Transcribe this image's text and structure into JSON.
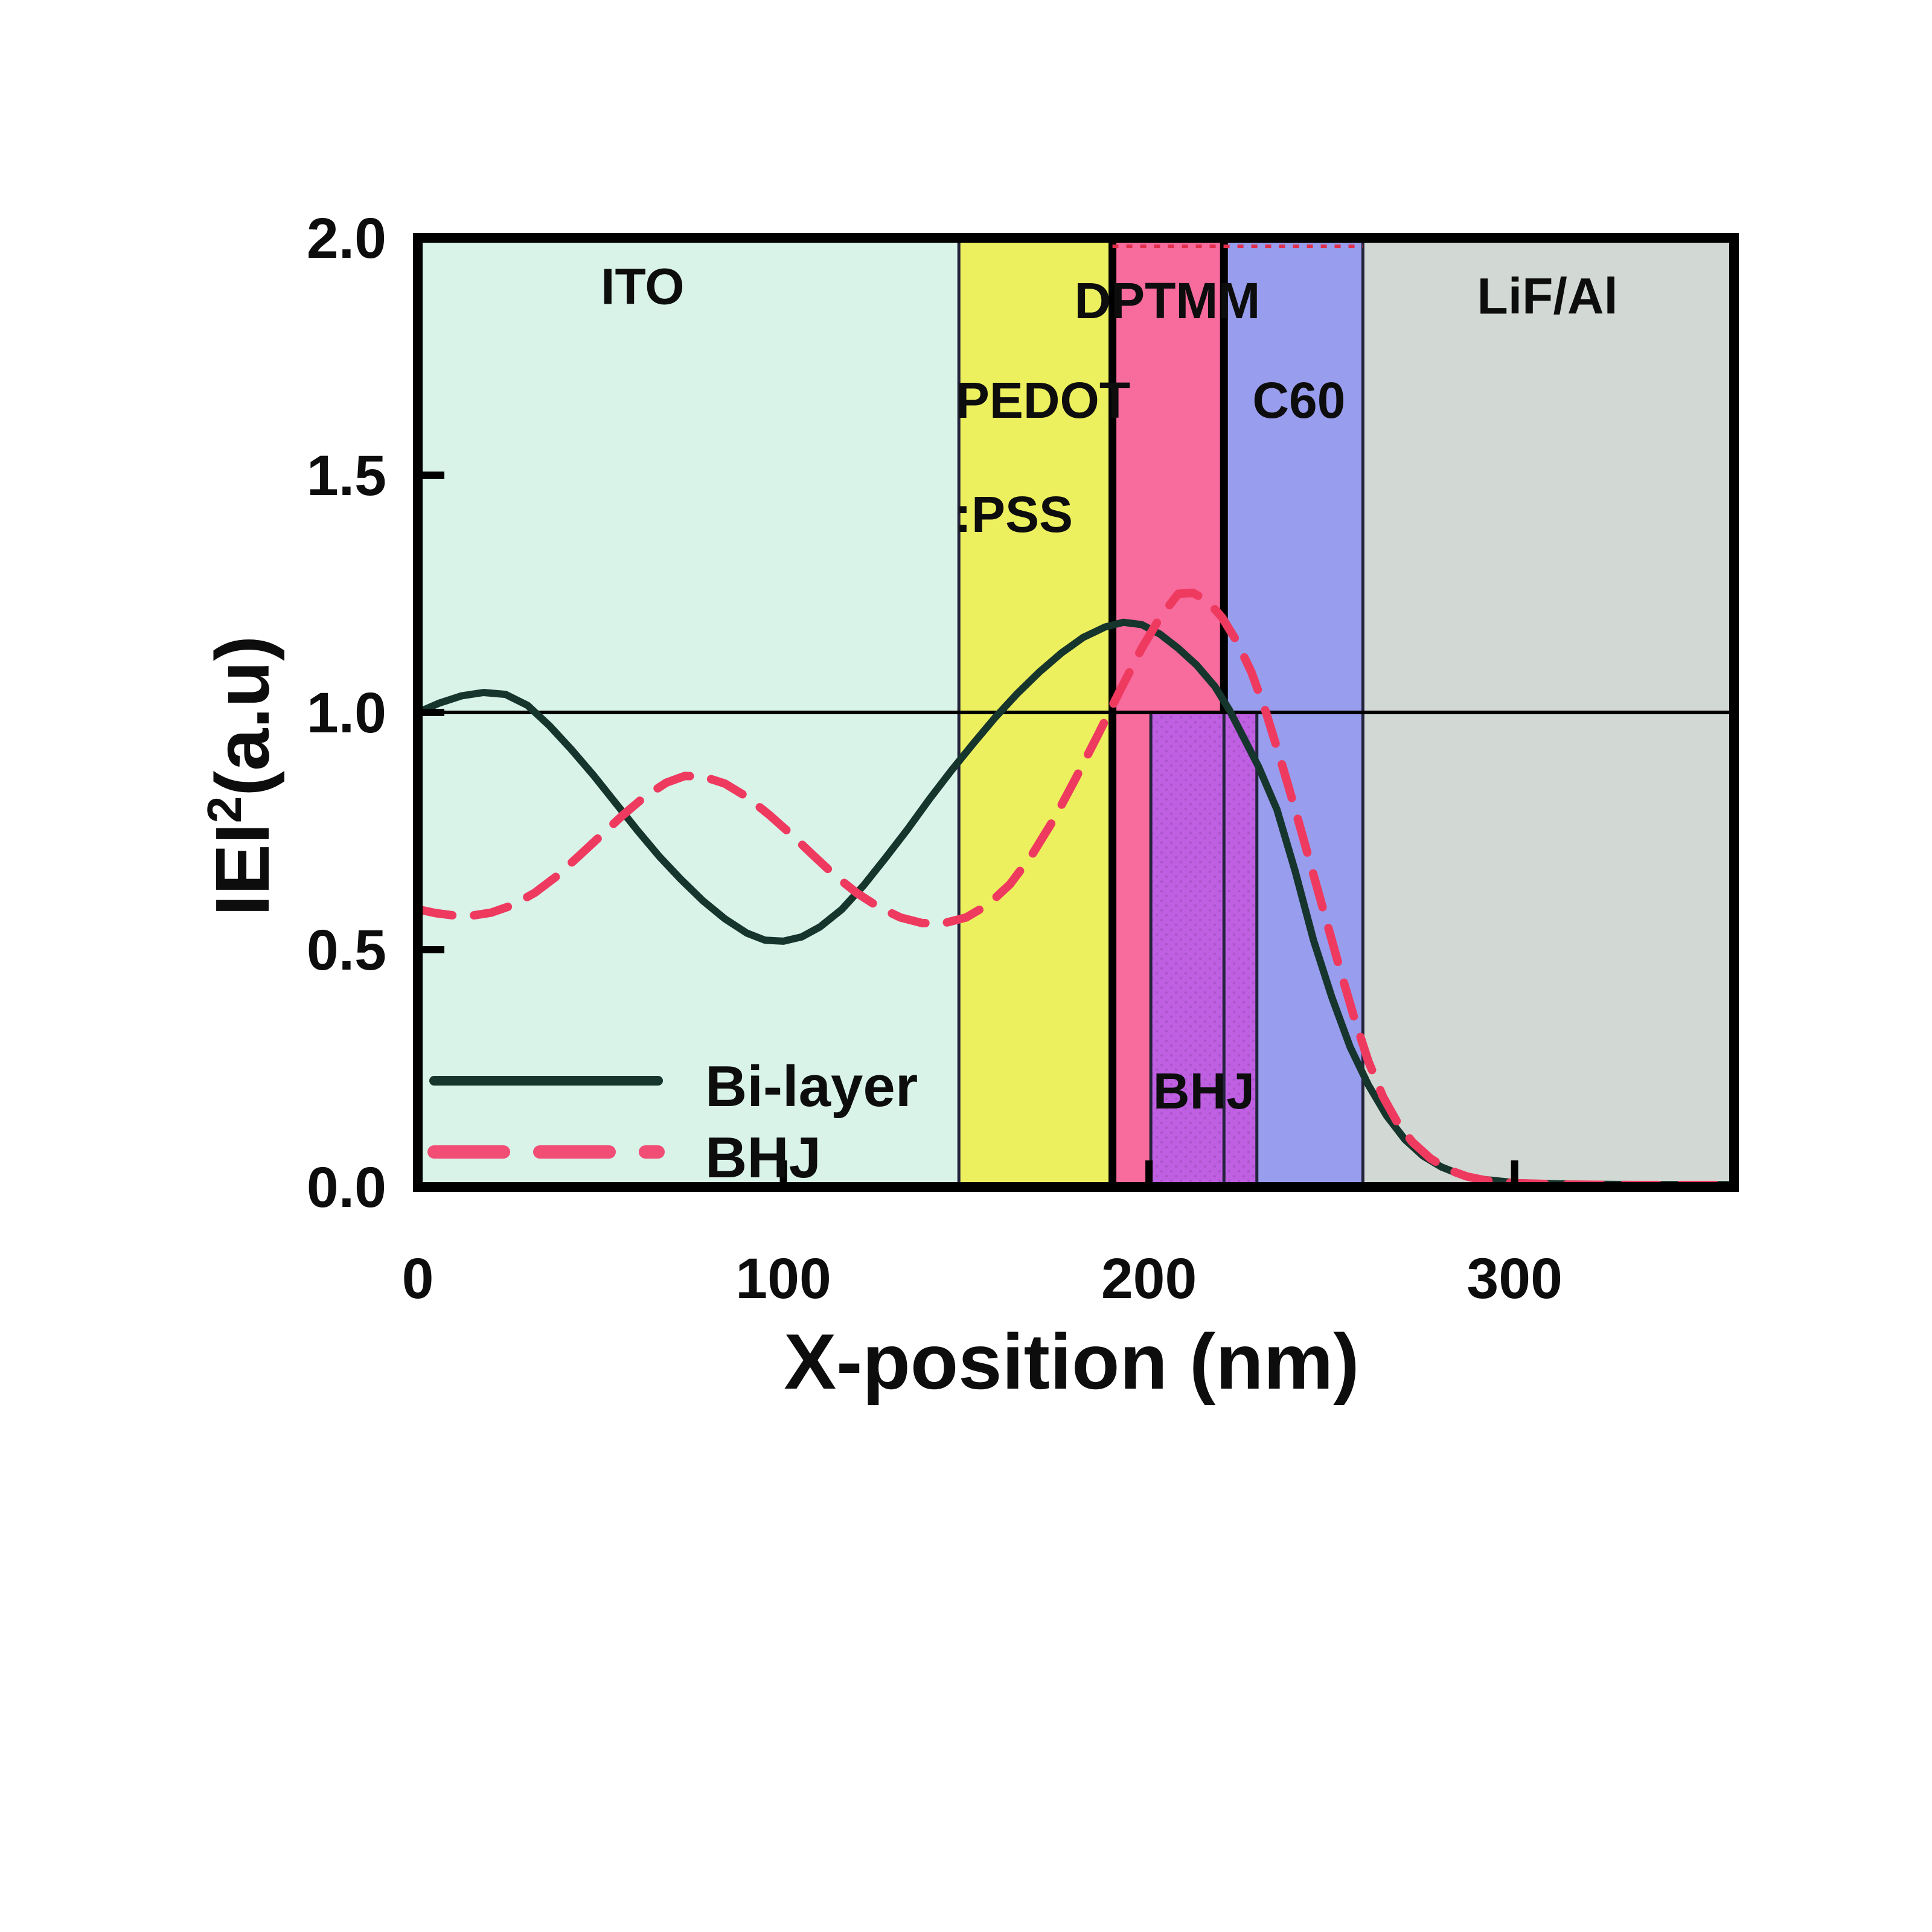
{
  "chart_data": {
    "type": "line",
    "title": "",
    "xlabel": "X-position (nm)",
    "ylabel": {
      "prefix": "IEI",
      "sup": "2",
      "suffix": "(a.u)"
    },
    "xlim": [
      0,
      360
    ],
    "ylim": [
      0,
      2.0
    ],
    "grid": false,
    "legend_position": "lower-left",
    "x_ticks": [
      {
        "value": 0,
        "label": "0"
      },
      {
        "value": 100,
        "label": "100"
      },
      {
        "value": 200,
        "label": "200"
      },
      {
        "value": 300,
        "label": "300"
      }
    ],
    "y_ticks": [
      {
        "value": 0.0,
        "label": "0.0"
      },
      {
        "value": 0.5,
        "label": "0.5"
      },
      {
        "value": 1.0,
        "label": "1.0"
      },
      {
        "value": 1.5,
        "label": "1.5"
      },
      {
        "value": 2.0,
        "label": "2.0"
      }
    ],
    "reference_line_y": 1.0,
    "regions": [
      {
        "name": "ITO",
        "x0": 0,
        "x1": 148,
        "color": "#d9f3e9",
        "label_lines": [
          {
            "text": "ITO",
            "x": 61.5,
            "y": 1.9
          }
        ]
      },
      {
        "name": "PEDOT:PSS",
        "x0": 148,
        "x1": 190,
        "color": "#edf05e",
        "label_lines": [
          {
            "text": "PEDOT",
            "x": 171,
            "y": 1.66
          },
          {
            "text": ":PSS",
            "x": 163,
            "y": 1.42
          }
        ]
      },
      {
        "name": "DPTMM",
        "x0": 190,
        "x1": 220.5,
        "color": "#f76b9d",
        "label_lines": [
          {
            "text": "DPTMM",
            "x": 205,
            "y": 1.87
          }
        ]
      },
      {
        "name": "C60",
        "x0": 220.5,
        "x1": 258.5,
        "color": "#989ded",
        "label_lines": [
          {
            "text": "C60",
            "x": 241,
            "y": 1.66
          }
        ]
      },
      {
        "name": "LiF/Al",
        "x0": 258.5,
        "x1": 360,
        "color": "#d2d8d3",
        "label_lines": [
          {
            "text": "LiF/Al",
            "x": 309,
            "y": 1.88
          }
        ]
      }
    ],
    "bhj_region": {
      "name": "BHJ",
      "x0": 200.5,
      "x1": 229.5,
      "y0": 0,
      "y1": 1.0,
      "color": "#bf5fe2",
      "label_lines": [
        {
          "text": "BHJ",
          "x": 215,
          "y": 0.205
        }
      ]
    },
    "boundaries": [
      {
        "x": 148,
        "span": "full",
        "strong": false
      },
      {
        "x": 190,
        "span": "full",
        "strong": true
      },
      {
        "x": 220.5,
        "span": "above",
        "strong": true
      },
      {
        "x": 220.5,
        "span": "below",
        "strong": false
      },
      {
        "x": 200.5,
        "span": "below",
        "strong": false
      },
      {
        "x": 229.5,
        "span": "below",
        "strong": false
      },
      {
        "x": 258.5,
        "span": "full",
        "strong": false
      }
    ],
    "top_dotted_edge": {
      "x0": 190,
      "x1": 258.5,
      "color": "#e0304c"
    },
    "series": [
      {
        "name": "Bi-layer",
        "style": "solid",
        "color": "#16352c",
        "points": [
          [
            0,
            1.0
          ],
          [
            6,
            1.02
          ],
          [
            12,
            1.035
          ],
          [
            18,
            1.042
          ],
          [
            24,
            1.038
          ],
          [
            30,
            1.015
          ],
          [
            36,
            0.972
          ],
          [
            42,
            0.922
          ],
          [
            48,
            0.868
          ],
          [
            54,
            0.81
          ],
          [
            60,
            0.752
          ],
          [
            66,
            0.697
          ],
          [
            72,
            0.648
          ],
          [
            78,
            0.603
          ],
          [
            84,
            0.565
          ],
          [
            90,
            0.535
          ],
          [
            95,
            0.52
          ],
          [
            100,
            0.518
          ],
          [
            105,
            0.527
          ],
          [
            110,
            0.548
          ],
          [
            116,
            0.585
          ],
          [
            122,
            0.636
          ],
          [
            128,
            0.694
          ],
          [
            134,
            0.754
          ],
          [
            140,
            0.818
          ],
          [
            146,
            0.878
          ],
          [
            152,
            0.935
          ],
          [
            158,
            0.99
          ],
          [
            164,
            1.04
          ],
          [
            170,
            1.085
          ],
          [
            176,
            1.125
          ],
          [
            182,
            1.158
          ],
          [
            188,
            1.18
          ],
          [
            193,
            1.19
          ],
          [
            198,
            1.185
          ],
          [
            203,
            1.165
          ],
          [
            208,
            1.135
          ],
          [
            213,
            1.1
          ],
          [
            218,
            1.055
          ],
          [
            222,
            1.005
          ],
          [
            226,
            0.945
          ],
          [
            230,
            0.885
          ],
          [
            235,
            0.795
          ],
          [
            240,
            0.665
          ],
          [
            245,
            0.52
          ],
          [
            250,
            0.4
          ],
          [
            255,
            0.295
          ],
          [
            260,
            0.215
          ],
          [
            265,
            0.15
          ],
          [
            270,
            0.1
          ],
          [
            275,
            0.065
          ],
          [
            280,
            0.042
          ],
          [
            285,
            0.027
          ],
          [
            290,
            0.017
          ],
          [
            300,
            0.009
          ],
          [
            315,
            0.006
          ],
          [
            335,
            0.005
          ],
          [
            360,
            0.005
          ]
        ]
      },
      {
        "name": "BHJ",
        "style": "dashed",
        "color": "#ef3a60",
        "points": [
          [
            0,
            0.585
          ],
          [
            5,
            0.577
          ],
          [
            10,
            0.572
          ],
          [
            15,
            0.572
          ],
          [
            20,
            0.578
          ],
          [
            26,
            0.594
          ],
          [
            32,
            0.62
          ],
          [
            38,
            0.655
          ],
          [
            44,
            0.697
          ],
          [
            50,
            0.74
          ],
          [
            56,
            0.783
          ],
          [
            62,
            0.822
          ],
          [
            68,
            0.852
          ],
          [
            73,
            0.866
          ],
          [
            78,
            0.865
          ],
          [
            84,
            0.85
          ],
          [
            90,
            0.822
          ],
          [
            96,
            0.785
          ],
          [
            102,
            0.744
          ],
          [
            108,
            0.7
          ],
          [
            114,
            0.657
          ],
          [
            120,
            0.62
          ],
          [
            126,
            0.59
          ],
          [
            132,
            0.568
          ],
          [
            138,
            0.556
          ],
          [
            144,
            0.556
          ],
          [
            150,
            0.568
          ],
          [
            156,
            0.595
          ],
          [
            162,
            0.638
          ],
          [
            168,
            0.7
          ],
          [
            174,
            0.775
          ],
          [
            180,
            0.862
          ],
          [
            186,
            0.952
          ],
          [
            192,
            1.045
          ],
          [
            198,
            1.135
          ],
          [
            203,
            1.2
          ],
          [
            208,
            1.25
          ],
          [
            212,
            1.252
          ],
          [
            216,
            1.235
          ],
          [
            220,
            1.2
          ],
          [
            224,
            1.15
          ],
          [
            228,
            1.085
          ],
          [
            232,
            1.0
          ],
          [
            236,
            0.9
          ],
          [
            240,
            0.795
          ],
          [
            244,
            0.685
          ],
          [
            248,
            0.575
          ],
          [
            252,
            0.465
          ],
          [
            256,
            0.36
          ],
          [
            260,
            0.265
          ],
          [
            264,
            0.19
          ],
          [
            268,
            0.135
          ],
          [
            272,
            0.095
          ],
          [
            277,
            0.06
          ],
          [
            282,
            0.036
          ],
          [
            287,
            0.022
          ],
          [
            292,
            0.014
          ],
          [
            300,
            0.008
          ],
          [
            315,
            0.005
          ],
          [
            335,
            0.004
          ],
          [
            360,
            0.004
          ]
        ]
      }
    ],
    "legend": {
      "entries": [
        {
          "label": "Bi-layer",
          "style": "solid",
          "color": "#16352c"
        },
        {
          "label": "BHJ",
          "style": "dashed",
          "color": "#f14d75"
        }
      ]
    }
  }
}
